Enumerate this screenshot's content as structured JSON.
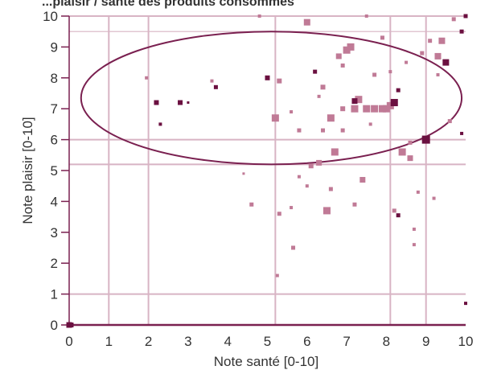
{
  "chart_data": {
    "type": "scatter",
    "title_clipped": "...plaisir / santé des produits consommés",
    "xlabel": "Note santé [0-10]",
    "ylabel": "Note plaisir [0-10]",
    "xlim": [
      0,
      10
    ],
    "ylim": [
      0,
      10
    ],
    "x_ticks": [
      "0",
      "1",
      "2",
      "3",
      "4",
      "5",
      "6",
      "7",
      "8",
      "9",
      "10"
    ],
    "y_ticks": [
      "0",
      "1",
      "2",
      "3",
      "4",
      "5",
      "6",
      "7",
      "8",
      "9",
      "10"
    ],
    "ellipse": {
      "cx": 5.1,
      "cy": 7.35,
      "rx": 4.8,
      "ry": 2.15
    },
    "colors": {
      "light": "#c07a96",
      "dark": "#6b1040",
      "grid": "#d8b4c4",
      "axis": "#7a2050"
    },
    "points": [
      [
        5.0,
        8.0,
        6,
        "dark"
      ],
      [
        5.2,
        6.7,
        9,
        "light"
      ],
      [
        6.0,
        9.8,
        8,
        "light"
      ],
      [
        6.1,
        5.15,
        6,
        "light"
      ],
      [
        6.3,
        5.25,
        7,
        "light"
      ],
      [
        6.5,
        3.7,
        9,
        "light"
      ],
      [
        6.6,
        6.7,
        9,
        "light"
      ],
      [
        6.7,
        5.6,
        9,
        "light"
      ],
      [
        6.8,
        8.7,
        7,
        "light"
      ],
      [
        6.9,
        8.4,
        5,
        "light"
      ],
      [
        6.9,
        7.0,
        6,
        "light"
      ],
      [
        7.0,
        8.9,
        9,
        "light"
      ],
      [
        7.1,
        9.0,
        9,
        "light"
      ],
      [
        7.2,
        7.0,
        9,
        "light"
      ],
      [
        7.3,
        7.3,
        9,
        "light"
      ],
      [
        7.4,
        4.7,
        7,
        "light"
      ],
      [
        7.5,
        7.0,
        9,
        "light"
      ],
      [
        7.7,
        7.0,
        9,
        "light"
      ],
      [
        7.9,
        7.0,
        9,
        "light"
      ],
      [
        8.0,
        7.0,
        9,
        "light"
      ],
      [
        8.1,
        7.1,
        9,
        "light"
      ],
      [
        8.2,
        7.2,
        9,
        "dark"
      ],
      [
        8.3,
        7.6,
        5,
        "dark"
      ],
      [
        8.4,
        5.6,
        9,
        "light"
      ],
      [
        8.6,
        5.4,
        7,
        "light"
      ],
      [
        8.9,
        8.8,
        5,
        "light"
      ],
      [
        9.0,
        6.0,
        10,
        "dark"
      ],
      [
        9.3,
        8.7,
        8,
        "light"
      ],
      [
        9.4,
        9.2,
        8,
        "light"
      ],
      [
        9.5,
        8.5,
        8,
        "dark"
      ],
      [
        9.7,
        9.9,
        5,
        "light"
      ],
      [
        10.0,
        10.0,
        5,
        "dark"
      ],
      [
        7.2,
        7.25,
        7,
        "dark"
      ],
      [
        6.2,
        8.2,
        5,
        "dark"
      ],
      [
        6.4,
        7.7,
        6,
        "light"
      ],
      [
        5.3,
        7.9,
        6,
        "light"
      ],
      [
        5.8,
        6.3,
        5,
        "light"
      ],
      [
        6.6,
        4.4,
        5,
        "light"
      ],
      [
        7.2,
        3.9,
        5,
        "light"
      ],
      [
        8.3,
        3.55,
        5,
        "dark"
      ],
      [
        5.3,
        3.6,
        5,
        "light"
      ],
      [
        5.6,
        3.8,
        4,
        "light"
      ],
      [
        6.4,
        6.3,
        5,
        "light"
      ],
      [
        5.8,
        4.8,
        4,
        "light"
      ],
      [
        6.0,
        4.5,
        4,
        "light"
      ],
      [
        8.2,
        3.7,
        5,
        "light"
      ],
      [
        2.8,
        7.2,
        6,
        "dark"
      ],
      [
        2.2,
        7.2,
        6,
        "dark"
      ],
      [
        3.7,
        7.7,
        5,
        "dark"
      ],
      [
        2.3,
        6.5,
        4,
        "dark"
      ],
      [
        4.6,
        3.9,
        5,
        "light"
      ],
      [
        3.6,
        7.9,
        4,
        "light"
      ],
      [
        1.95,
        8.0,
        4,
        "light"
      ],
      [
        3.0,
        7.2,
        3,
        "dark"
      ],
      [
        5.25,
        1.6,
        4,
        "light"
      ],
      [
        5.65,
        2.5,
        5,
        "light"
      ],
      [
        8.7,
        2.6,
        4,
        "light"
      ],
      [
        8.8,
        4.3,
        4,
        "light"
      ],
      [
        9.2,
        4.1,
        4,
        "light"
      ],
      [
        9.9,
        6.2,
        4,
        "dark"
      ],
      [
        10.0,
        0.7,
        4,
        "dark"
      ],
      [
        9.1,
        9.2,
        5,
        "light"
      ],
      [
        8.5,
        8.5,
        4,
        "light"
      ],
      [
        7.9,
        9.3,
        5,
        "light"
      ],
      [
        5.6,
        6.9,
        4,
        "light"
      ],
      [
        6.9,
        6.3,
        5,
        "light"
      ],
      [
        7.6,
        6.5,
        4,
        "light"
      ],
      [
        6.3,
        7.4,
        4,
        "light"
      ],
      [
        8.6,
        5.9,
        5,
        "light"
      ],
      [
        9.9,
        9.5,
        5,
        "dark"
      ],
      [
        4.8,
        10.0,
        4,
        "light"
      ],
      [
        7.5,
        10.0,
        4,
        "light"
      ],
      [
        0.0,
        0.0,
        7,
        "dark"
      ],
      [
        0.05,
        0.0,
        6,
        "dark"
      ],
      [
        7.7,
        8.1,
        5,
        "light"
      ],
      [
        8.1,
        8.2,
        4,
        "light"
      ],
      [
        9.6,
        6.6,
        5,
        "light"
      ],
      [
        4.4,
        4.9,
        3,
        "light"
      ],
      [
        8.7,
        3.1,
        4,
        "light"
      ],
      [
        9.3,
        8.1,
        4,
        "light"
      ]
    ]
  }
}
